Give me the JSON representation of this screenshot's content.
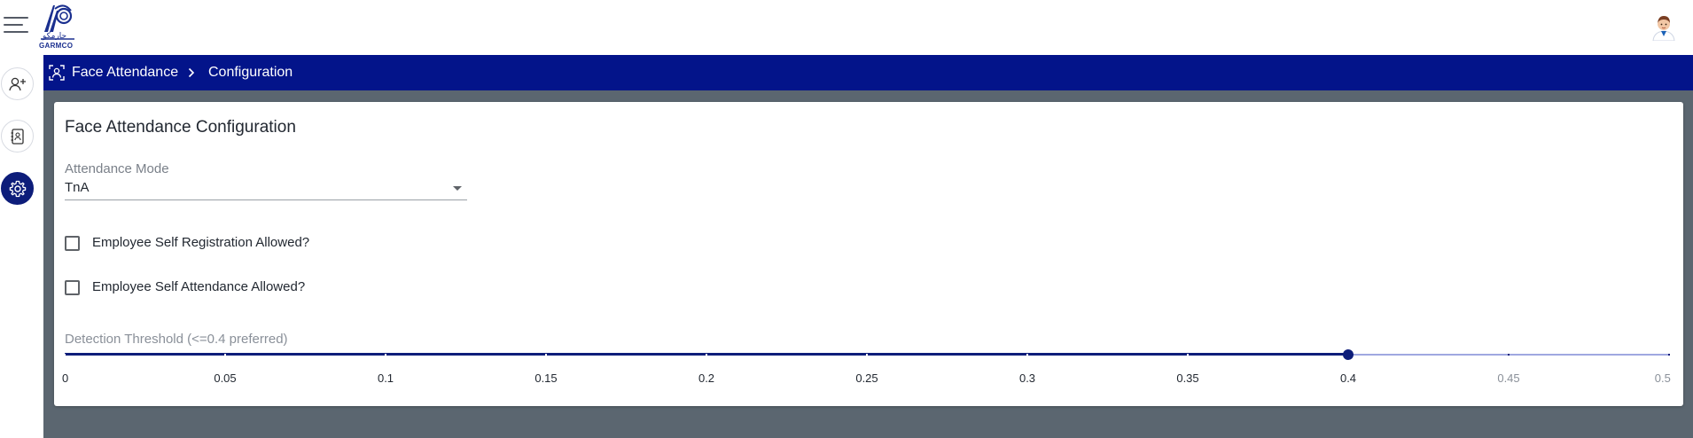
{
  "header": {
    "logo_text": "GARMCO",
    "logo_arabic": "جارمكو"
  },
  "breadcrumb": {
    "items": [
      "Face Attendance",
      "Configuration"
    ]
  },
  "card": {
    "title": "Face Attendance Configuration",
    "attendance_mode": {
      "label": "Attendance Mode",
      "value": "TnA"
    },
    "checkboxes": [
      {
        "label": "Employee Self Registration Allowed?",
        "checked": false
      },
      {
        "label": "Employee Self Attendance Allowed?",
        "checked": false
      }
    ],
    "threshold": {
      "label": "Detection Threshold (<=0.4 preferred)",
      "min": 0,
      "max": 0.5,
      "step": 0.05,
      "value": 0.4,
      "tick_labels": [
        "0",
        "0.05",
        "0.1",
        "0.15",
        "0.2",
        "0.25",
        "0.3",
        "0.35",
        "0.4",
        "0.45",
        "0.5"
      ]
    }
  },
  "icons": {
    "menu": "hamburger-icon",
    "user": "user-avatar-icon",
    "rail": [
      "add-user-icon",
      "contact-book-icon",
      "gear-icon"
    ],
    "breadcrumb": "face-scan-icon",
    "separator": "chevron-right-icon"
  },
  "colors": {
    "primary": "#03148a",
    "accent": "#0d1d7a",
    "backdrop": "#5b6670"
  }
}
